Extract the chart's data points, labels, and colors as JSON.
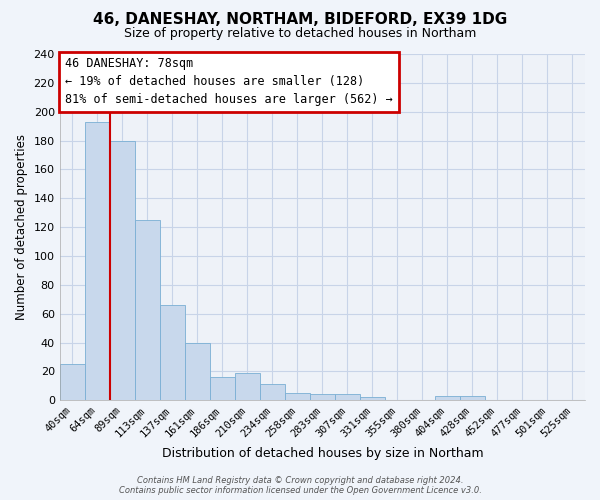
{
  "title": "46, DANESHAY, NORTHAM, BIDEFORD, EX39 1DG",
  "subtitle": "Size of property relative to detached houses in Northam",
  "xlabel": "Distribution of detached houses by size in Northam",
  "ylabel": "Number of detached properties",
  "bin_labels": [
    "40sqm",
    "64sqm",
    "89sqm",
    "113sqm",
    "137sqm",
    "161sqm",
    "186sqm",
    "210sqm",
    "234sqm",
    "258sqm",
    "283sqm",
    "307sqm",
    "331sqm",
    "355sqm",
    "380sqm",
    "404sqm",
    "428sqm",
    "452sqm",
    "477sqm",
    "501sqm",
    "525sqm"
  ],
  "bar_heights": [
    25,
    193,
    180,
    125,
    66,
    40,
    16,
    19,
    11,
    5,
    4,
    4,
    2,
    0,
    0,
    3,
    3,
    0,
    0,
    0,
    0
  ],
  "bar_color": "#c8d8ec",
  "bar_edge_color": "#7aafd4",
  "vline_x_bar_idx": 1,
  "vline_color": "#cc0000",
  "annotation_title": "46 DANESHAY: 78sqm",
  "annotation_line1": "← 19% of detached houses are smaller (128)",
  "annotation_line2": "81% of semi-detached houses are larger (562) →",
  "annotation_box_color": "#ffffff",
  "annotation_box_edge": "#cc0000",
  "ylim": [
    0,
    240
  ],
  "yticks": [
    0,
    20,
    40,
    60,
    80,
    100,
    120,
    140,
    160,
    180,
    200,
    220,
    240
  ],
  "footer1": "Contains HM Land Registry data © Crown copyright and database right 2024.",
  "footer2": "Contains public sector information licensed under the Open Government Licence v3.0.",
  "bg_color": "#f0f4fa",
  "plot_bg_color": "#eef2f8",
  "grid_color": "#c8d4e8"
}
